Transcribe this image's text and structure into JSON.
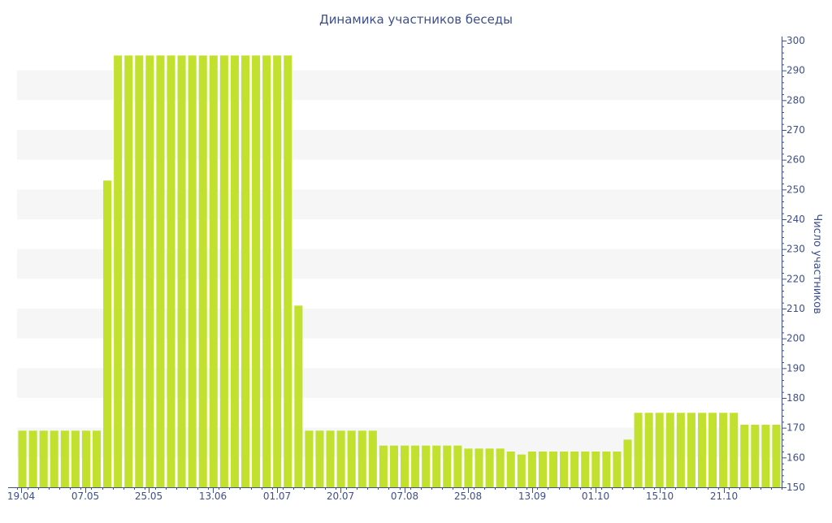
{
  "chart_data": {
    "type": "bar",
    "title": "Динамика участников беседы",
    "xlabel": "",
    "ylabel": "Число участников",
    "ylim": [
      150,
      300
    ],
    "y_ticks": [
      150,
      160,
      170,
      180,
      190,
      200,
      210,
      220,
      230,
      240,
      250,
      260,
      270,
      280,
      290,
      300
    ],
    "x_tick_labels": [
      "19.04",
      "07.05",
      "25.05",
      "13.06",
      "01.07",
      "20.07",
      "07.08",
      "25.08",
      "13.09",
      "01.10",
      "15.10",
      "21.10"
    ],
    "y_axis_position": "right",
    "grid": "alternating horizontal bands",
    "legend": "none",
    "values": [
      169,
      169,
      169,
      169,
      169,
      169,
      169,
      169,
      253,
      295,
      295,
      295,
      295,
      295,
      295,
      295,
      295,
      295,
      295,
      295,
      295,
      295,
      295,
      295,
      295,
      295,
      211,
      169,
      169,
      169,
      169,
      169,
      169,
      169,
      164,
      164,
      164,
      164,
      164,
      164,
      164,
      164,
      163,
      163,
      163,
      163,
      162,
      161,
      162,
      162,
      162,
      162,
      162,
      162,
      162,
      162,
      162,
      166,
      175,
      175,
      175,
      175,
      175,
      175,
      175,
      175,
      175,
      175,
      171,
      171,
      171,
      171
    ],
    "colors": {
      "bar": "#c1e12e",
      "band": "#f6f6f6",
      "axis": "#3e4f8a",
      "text": "#3e4f8a"
    }
  }
}
